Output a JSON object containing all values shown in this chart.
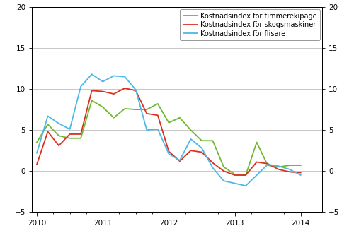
{
  "legend_labels": [
    "Kostnadsindex för flisare",
    "Kostnadsindex för skogsmaskiner",
    "Kostnadsindex för timmerekipage"
  ],
  "colors": [
    "#4db8e8",
    "#d93020",
    "#70b832"
  ],
  "ylim": [
    -5,
    20
  ],
  "yticks": [
    -5,
    0,
    5,
    10,
    15,
    20
  ],
  "flisare": [
    2.2,
    6.7,
    5.8,
    5.1,
    10.3,
    11.8,
    10.9,
    11.6,
    11.5,
    9.9,
    5.0,
    5.1,
    2.1,
    1.3,
    3.9,
    2.8,
    0.4,
    -1.2,
    -1.5,
    -1.8,
    -0.5,
    0.8,
    0.6,
    0.2,
    -0.5
  ],
  "skogsmaskiner": [
    0.8,
    4.8,
    3.1,
    4.5,
    4.5,
    9.8,
    9.7,
    9.4,
    10.1,
    9.8,
    7.0,
    6.8,
    2.4,
    1.2,
    2.5,
    2.3,
    1.0,
    0.0,
    -0.5,
    -0.5,
    1.1,
    0.9,
    0.2,
    -0.1,
    -0.2
  ],
  "timmerekipage": [
    3.5,
    5.7,
    4.3,
    4.0,
    4.0,
    8.6,
    7.8,
    6.5,
    7.6,
    7.5,
    7.5,
    8.2,
    5.9,
    6.5,
    5.0,
    3.7,
    3.7,
    0.5,
    -0.4,
    -0.5,
    3.5,
    0.7,
    0.5,
    0.7,
    0.7
  ],
  "n_points": 25,
  "background_color": "#ffffff",
  "grid_color": "#b0b0b0",
  "line_width": 1.3,
  "legend_fontsize": 7.0,
  "tick_fontsize": 7.5,
  "major_xticks": [
    0,
    2,
    4,
    6,
    8
  ],
  "major_xlabels": [
    "2010",
    "2011",
    "2012",
    "2013",
    "2014"
  ],
  "xmin": -0.15,
  "xmax": 8.65
}
